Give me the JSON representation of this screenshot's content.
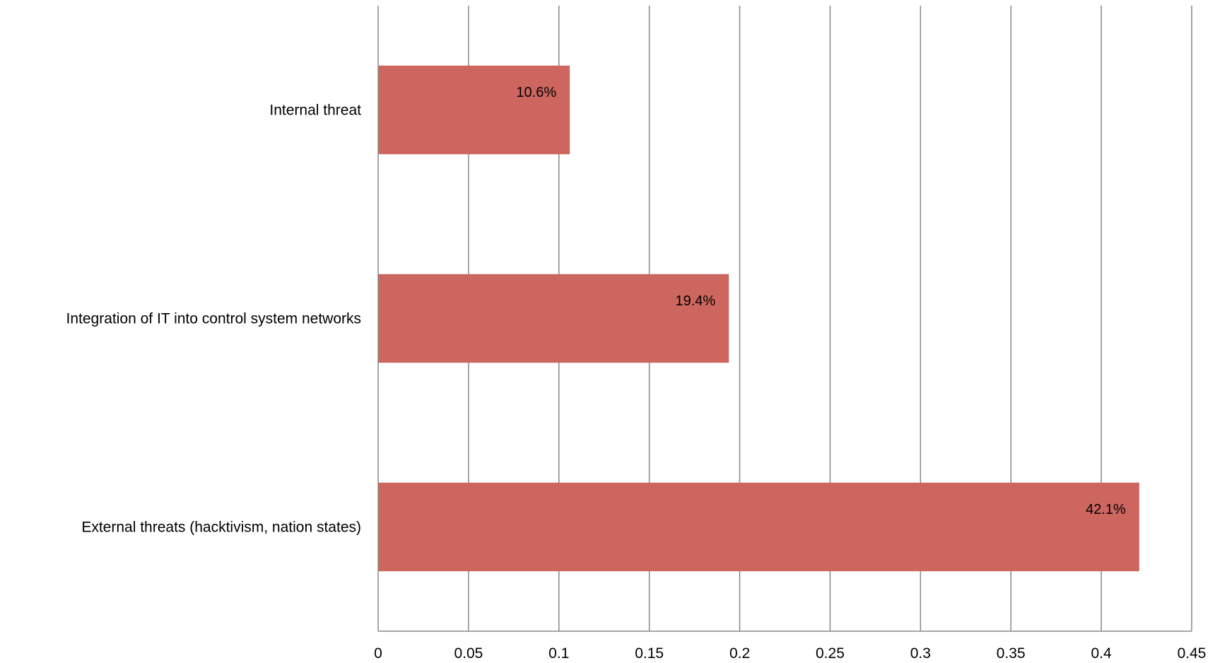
{
  "chart_data": {
    "type": "bar",
    "orientation": "horizontal",
    "categories": [
      "Internal threat",
      "Integration of IT into control system networks",
      "External threats (hacktivism, nation states)"
    ],
    "values": [
      0.106,
      0.194,
      0.421
    ],
    "data_labels": [
      "10.6%",
      "19.4%",
      "42.1%"
    ],
    "title": "",
    "xlabel": "",
    "ylabel": "",
    "xlim": [
      0,
      0.45
    ],
    "x_ticks": [
      0,
      0.05,
      0.1,
      0.15,
      0.2,
      0.25,
      0.3,
      0.35,
      0.4,
      0.45
    ],
    "x_tick_labels": [
      "0",
      "0.05",
      "0.1",
      "0.15",
      "0.2",
      "0.25",
      "0.3",
      "0.35",
      "0.4",
      "0.45"
    ],
    "grid": true,
    "legend": "none",
    "bar_color": "#cd665f",
    "grid_color": "#888888"
  }
}
